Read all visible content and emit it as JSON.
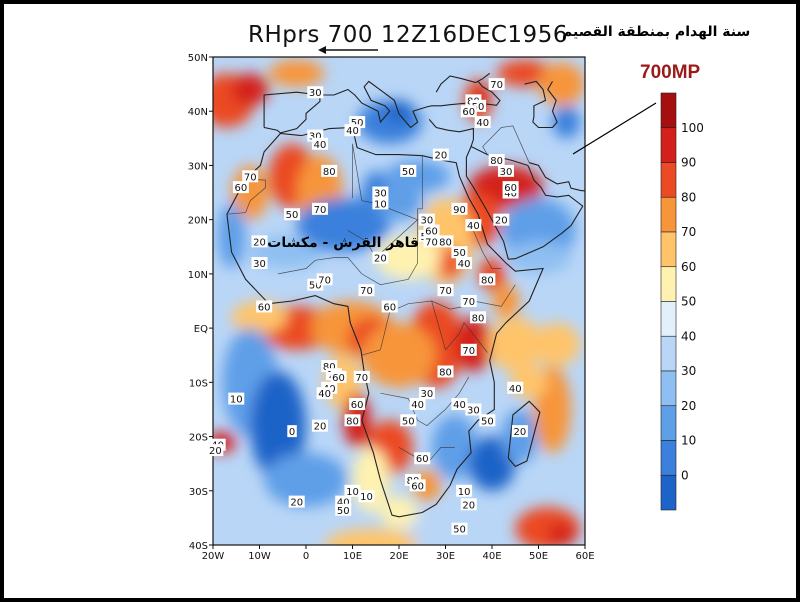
{
  "title": {
    "main": "RHprs 700 12Z16DEC1956",
    "arabic": "سنة الهدام بمنطقة القصيم"
  },
  "level_label": "700MP",
  "annotation_arabic": "قاهر القرش - مكشات",
  "colors": {
    "lt0": "#1e63c8",
    "c0_10": "#3a80dc",
    "c10_20": "#5f9fe8",
    "c20_30": "#8fbff2",
    "c30_40": "#b9d6f7",
    "c40_50": "#e2f0fb",
    "c50_60": "#fff2b0",
    "c60_70": "#ffc46a",
    "c70_80": "#f7953a",
    "c80_90": "#eb4a24",
    "c90_100": "#d4201a",
    "c100": "#a50f0f"
  },
  "chart_data": {
    "type": "heatmap",
    "variable": "RHprs",
    "level": "700",
    "time": "12Z16DEC1956",
    "lon_range": [
      -20,
      60
    ],
    "lat_range": [
      -40,
      50
    ],
    "lon_ticks": [
      "20W",
      "10W",
      "0",
      "10E",
      "20E",
      "30E",
      "40E",
      "50E",
      "60E"
    ],
    "lat_ticks": [
      "50N",
      "40N",
      "30N",
      "20N",
      "10N",
      "EQ",
      "10S",
      "20S",
      "30S",
      "40S"
    ],
    "colorbar": {
      "levels": [
        0,
        10,
        20,
        30,
        40,
        50,
        60,
        70,
        80,
        90,
        100
      ],
      "labels": [
        "100",
        "90",
        "80",
        "70",
        "60",
        "50",
        "40",
        "30",
        "20",
        "10",
        "0"
      ]
    },
    "contour_labels": [
      {
        "lon": -19,
        "lat": -21.5,
        "text": "40"
      },
      {
        "lon": -19.5,
        "lat": -22.5,
        "text": "20"
      },
      {
        "lon": -15,
        "lat": -13,
        "text": "10"
      },
      {
        "lon": -12,
        "lat": 28,
        "text": "70"
      },
      {
        "lon": -14,
        "lat": 26,
        "text": "60"
      },
      {
        "lon": -10,
        "lat": 12,
        "text": "30"
      },
      {
        "lon": -9,
        "lat": 4,
        "text": "60"
      },
      {
        "lon": -10,
        "lat": 16,
        "text": "20"
      },
      {
        "lon": -3,
        "lat": -19,
        "text": "0"
      },
      {
        "lon": -2,
        "lat": -32,
        "text": "20"
      },
      {
        "lon": -3,
        "lat": 21,
        "text": "50"
      },
      {
        "lon": 2,
        "lat": 43.5,
        "text": "30"
      },
      {
        "lon": 2,
        "lat": 35.5,
        "text": "30"
      },
      {
        "lon": 3,
        "lat": 34,
        "text": "40"
      },
      {
        "lon": 5,
        "lat": 29,
        "text": "80"
      },
      {
        "lon": 3,
        "lat": 22,
        "text": "70"
      },
      {
        "lon": 2,
        "lat": 8,
        "text": "50"
      },
      {
        "lon": 4,
        "lat": 9,
        "text": "70"
      },
      {
        "lon": 5,
        "lat": -7,
        "text": "80"
      },
      {
        "lon": 6,
        "lat": -8.5,
        "text": "70"
      },
      {
        "lon": 5,
        "lat": -11,
        "text": "40"
      },
      {
        "lon": 4,
        "lat": -12,
        "text": "40"
      },
      {
        "lon": 7,
        "lat": -9,
        "text": "60"
      },
      {
        "lon": 3,
        "lat": -18,
        "text": "20"
      },
      {
        "lon": 8,
        "lat": -32,
        "text": "40"
      },
      {
        "lon": 8,
        "lat": -33.5,
        "text": "50"
      },
      {
        "lon": 10,
        "lat": -30,
        "text": "10"
      },
      {
        "lon": 11,
        "lat": 38,
        "text": "50"
      },
      {
        "lon": 10,
        "lat": 36.5,
        "text": "40"
      },
      {
        "lon": 13,
        "lat": 7,
        "text": "70"
      },
      {
        "lon": 12,
        "lat": -9,
        "text": "70"
      },
      {
        "lon": 10,
        "lat": -17,
        "text": "80"
      },
      {
        "lon": 11,
        "lat": -14,
        "text": "60"
      },
      {
        "lon": 16,
        "lat": 25,
        "text": "30"
      },
      {
        "lon": 16,
        "lat": 23,
        "text": "10"
      },
      {
        "lon": 16,
        "lat": 13,
        "text": "20"
      },
      {
        "lon": 18,
        "lat": 4,
        "text": "60"
      },
      {
        "lon": 13,
        "lat": -31,
        "text": "10"
      },
      {
        "lon": 22,
        "lat": 29,
        "text": "50"
      },
      {
        "lon": 23,
        "lat": -28,
        "text": "80"
      },
      {
        "lon": 24,
        "lat": -29,
        "text": "60"
      },
      {
        "lon": 25,
        "lat": -24,
        "text": "60"
      },
      {
        "lon": 22,
        "lat": -17,
        "text": "50"
      },
      {
        "lon": 24,
        "lat": -14,
        "text": "40"
      },
      {
        "lon": 26,
        "lat": -12,
        "text": "30"
      },
      {
        "lon": 26,
        "lat": 20,
        "text": "30"
      },
      {
        "lon": 26,
        "lat": 17,
        "text": "50"
      },
      {
        "lon": 27,
        "lat": 18,
        "text": "60"
      },
      {
        "lon": 27,
        "lat": 16,
        "text": "70"
      },
      {
        "lon": 30,
        "lat": 16,
        "text": "80"
      },
      {
        "lon": 33,
        "lat": 22,
        "text": "90"
      },
      {
        "lon": 33,
        "lat": 14,
        "text": "50"
      },
      {
        "lon": 34,
        "lat": 12,
        "text": "40"
      },
      {
        "lon": 29,
        "lat": 32,
        "text": "20"
      },
      {
        "lon": 30,
        "lat": 7,
        "text": "70"
      },
      {
        "lon": 35,
        "lat": 5,
        "text": "70"
      },
      {
        "lon": 37,
        "lat": 2,
        "text": "80"
      },
      {
        "lon": 39,
        "lat": 9,
        "text": "80"
      },
      {
        "lon": 35,
        "lat": -4,
        "text": "70"
      },
      {
        "lon": 30,
        "lat": -8,
        "text": "80"
      },
      {
        "lon": 33,
        "lat": -14,
        "text": "40"
      },
      {
        "lon": 36,
        "lat": -15,
        "text": "30"
      },
      {
        "lon": 39,
        "lat": -17,
        "text": "50"
      },
      {
        "lon": 36,
        "lat": 42,
        "text": "80"
      },
      {
        "lon": 37,
        "lat": 41,
        "text": "50"
      },
      {
        "lon": 35,
        "lat": 40,
        "text": "60"
      },
      {
        "lon": 38,
        "lat": 38,
        "text": "40"
      },
      {
        "lon": 41,
        "lat": 45,
        "text": "70"
      },
      {
        "lon": 41,
        "lat": 31,
        "text": "80"
      },
      {
        "lon": 43,
        "lat": 29,
        "text": "30"
      },
      {
        "lon": 44,
        "lat": 25,
        "text": "40"
      },
      {
        "lon": 42,
        "lat": 20,
        "text": "20"
      },
      {
        "lon": 44,
        "lat": 26,
        "text": "60"
      },
      {
        "lon": 36,
        "lat": 19,
        "text": "40"
      },
      {
        "lon": 45,
        "lat": -11,
        "text": "40"
      },
      {
        "lon": 46,
        "lat": -19,
        "text": "20"
      },
      {
        "lon": 34,
        "lat": -30,
        "text": "10"
      },
      {
        "lon": 35,
        "lat": -32.5,
        "text": "20"
      },
      {
        "lon": 33,
        "lat": -37,
        "text": "50"
      }
    ],
    "annotation_position": {
      "lon": 8,
      "lat": 15
    }
  }
}
